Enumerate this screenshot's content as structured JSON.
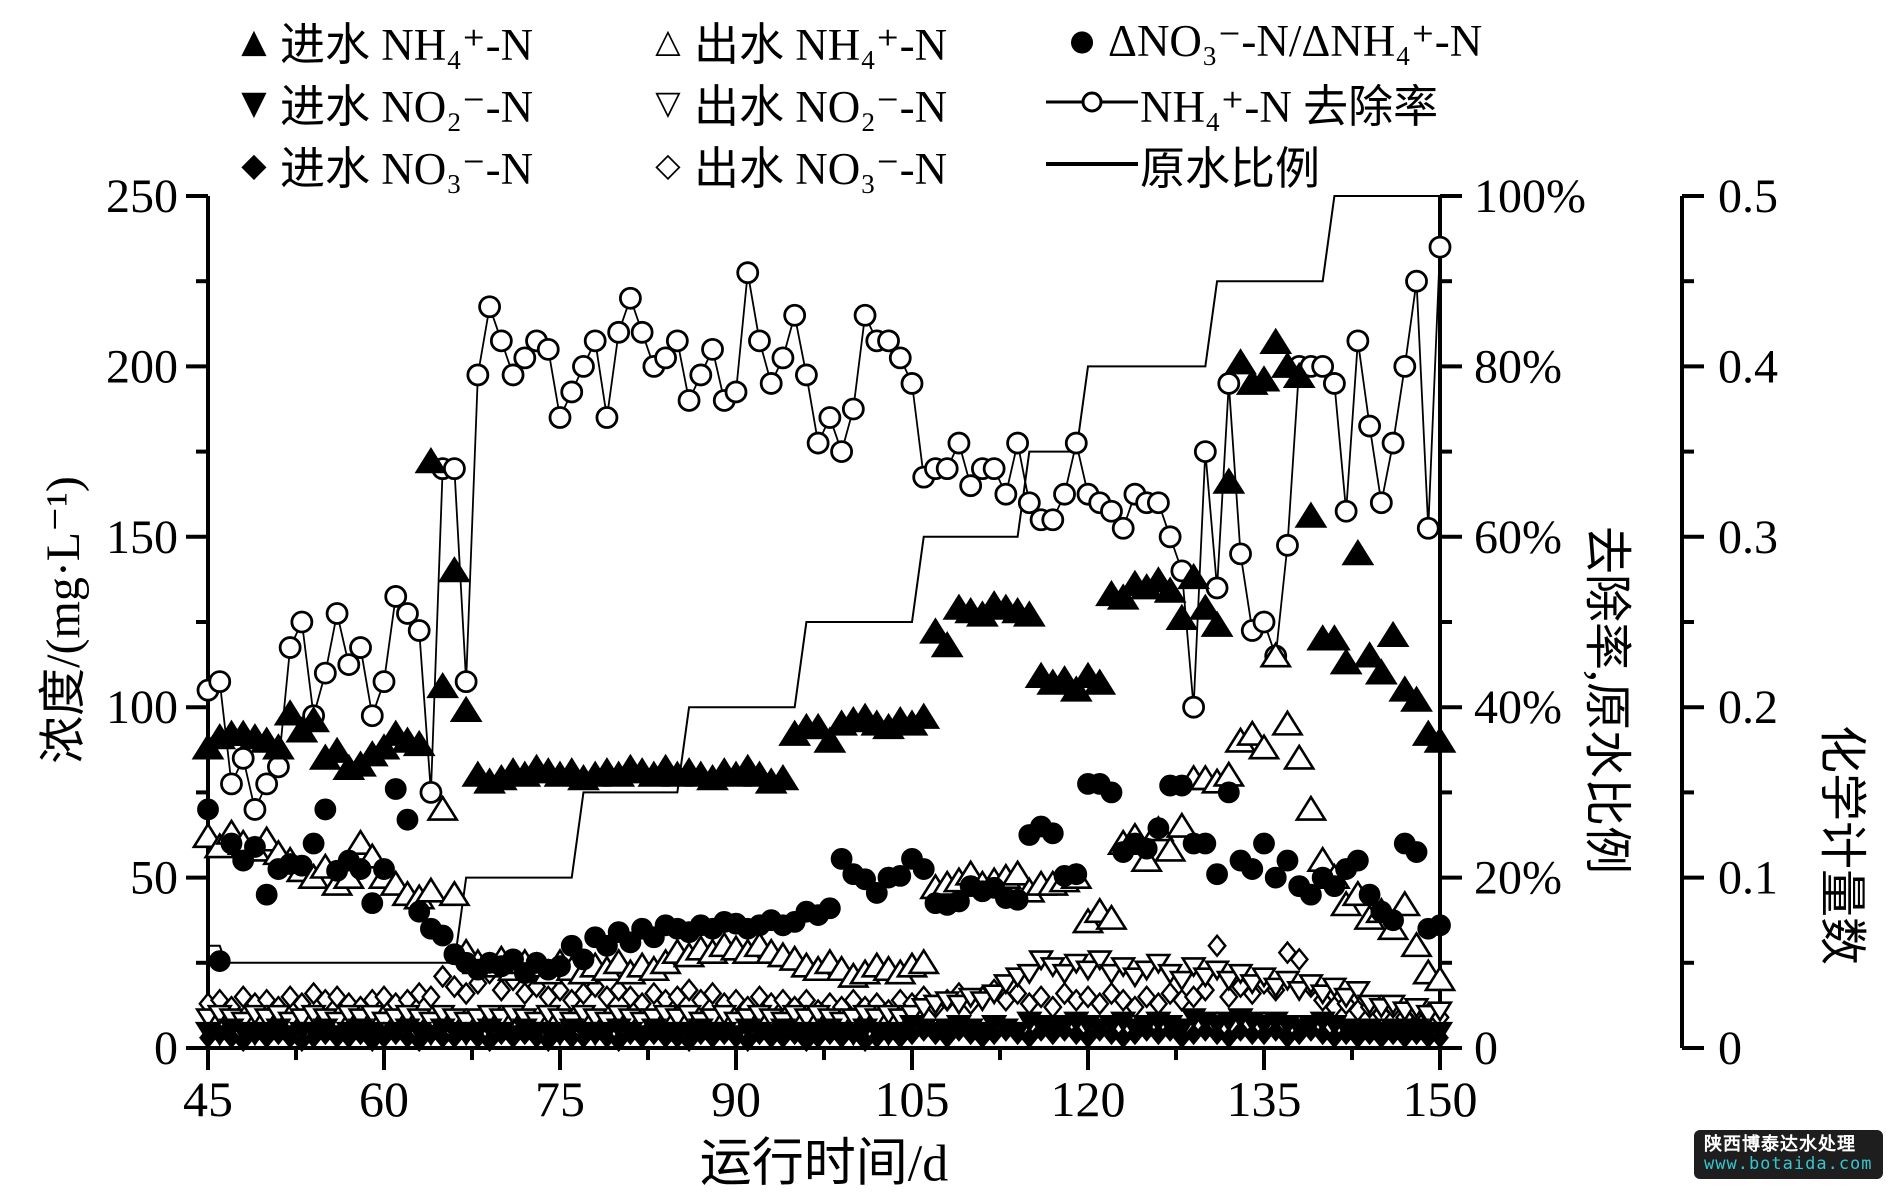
{
  "figure": {
    "x_title": "运行时间/d",
    "conc_title": "浓度/(mg·L⁻¹)",
    "percent_title": "去除率,原水比例",
    "stoich_title": "化学计量数"
  },
  "legend": {
    "items": [
      {
        "id": "inflow_nh4",
        "glyph": "▲",
        "label": "进水 NH₄⁺-N"
      },
      {
        "id": "outflow_nh4",
        "glyph": "△",
        "label": "出水 NH₄⁺-N"
      },
      {
        "id": "stoich",
        "glyph": "●",
        "label": "ΔNO₃⁻-N/ΔNH₄⁺-N"
      },
      {
        "id": "inflow_no2",
        "glyph": "▼",
        "label": "进水 NO₂⁻-N"
      },
      {
        "id": "outflow_no2",
        "glyph": "▽",
        "label": "出水 NO₂⁻-N"
      },
      {
        "id": "removal",
        "glyph": "",
        "label": "NH₄⁺-N 去除率"
      },
      {
        "id": "inflow_no3",
        "glyph": "◆",
        "label": "进水 NO₃⁻-N"
      },
      {
        "id": "outflow_no3",
        "glyph": "◇",
        "label": "出水 NO₃⁻-N"
      },
      {
        "id": "ratio",
        "glyph": "",
        "label": "原水比例"
      }
    ]
  },
  "watermark": {
    "line1": "陕西博泰达水处理",
    "line2": "www.botaida.com",
    "url_color": "#36c6d0",
    "bg_color": "#1e1e1e"
  },
  "chart_data": {
    "type": "scatter",
    "title": "",
    "xlabel": "运行时间/d",
    "x_range": [
      45,
      150
    ],
    "x_major_ticks": [
      45,
      60,
      75,
      90,
      105,
      120,
      135,
      150
    ],
    "x_minor_step": 7.5,
    "grid": false,
    "legend_position": "top",
    "axes": {
      "conc": {
        "label": "浓度/(mg·L⁻¹)",
        "range": [
          0,
          250
        ],
        "major_ticks": [
          0,
          50,
          100,
          150,
          200,
          250
        ],
        "minor_step": 25,
        "tick_labels": [
          "0",
          "50",
          "100",
          "150",
          "200",
          "250"
        ]
      },
      "percent": {
        "label": "去除率,原水比例",
        "range": [
          0,
          100
        ],
        "major_ticks": [
          0,
          20,
          40,
          60,
          80,
          100
        ],
        "minor_step": 10,
        "tick_labels": [
          "0",
          "20%",
          "40%",
          "60%",
          "80%",
          "100%"
        ]
      },
      "stoich": {
        "label": "化学计量数",
        "range": [
          0,
          0.5
        ],
        "major_ticks": [
          0,
          0.1,
          0.2,
          0.3,
          0.4,
          0.5
        ],
        "minor_step": 0.05,
        "tick_labels": [
          "0",
          "0.1",
          "0.2",
          "0.3",
          "0.4",
          "0.5"
        ]
      }
    },
    "days_start": 45,
    "series": [
      {
        "id": "inflow_nh4",
        "label": "进水 NH₄⁺-N",
        "axis": "conc",
        "marker": "triangle-up-filled",
        "size": 13,
        "values": [
          88,
          91,
          92,
          92,
          91,
          90,
          88,
          98,
          93,
          96,
          85,
          87,
          82,
          83,
          86,
          88,
          92,
          90,
          89,
          172,
          106,
          140,
          99,
          80,
          78,
          79,
          81,
          80,
          82,
          81,
          80,
          81,
          79,
          80,
          81,
          80,
          82,
          81,
          80,
          82,
          80,
          81,
          80,
          79,
          81,
          80,
          82,
          80,
          78,
          79,
          92,
          94,
          94,
          90,
          95,
          96,
          97,
          95,
          94,
          96,
          95,
          97,
          122,
          118,
          129,
          128,
          127,
          130,
          129,
          128,
          127,
          109,
          107,
          108,
          105,
          109,
          107,
          133,
          132,
          136,
          135,
          137,
          134,
          126,
          138,
          129,
          124,
          166,
          201,
          195,
          196,
          207,
          200,
          197,
          156,
          120,
          120,
          113,
          145,
          115,
          110,
          121,
          105,
          102,
          92,
          90
        ]
      },
      {
        "id": "outflow_nh4",
        "label": "出水 NH₄⁺-N",
        "axis": "conc",
        "marker": "triangle-up-open",
        "size": 13,
        "values": [
          62,
          59,
          63,
          60,
          58,
          61,
          57,
          55,
          52,
          50,
          53,
          48,
          50,
          60,
          56,
          50,
          48,
          45,
          44,
          46,
          70,
          45,
          28,
          25,
          24,
          26,
          23,
          25,
          24,
          22,
          25,
          23,
          22,
          24,
          23,
          25,
          22,
          24,
          23,
          25,
          28,
          27,
          29,
          28,
          30,
          29,
          28,
          30,
          28,
          27,
          26,
          24,
          23,
          25,
          23,
          21,
          22,
          24,
          23,
          22,
          24,
          25,
          47,
          48,
          49,
          51,
          48,
          49,
          50,
          51,
          46,
          48,
          48,
          49,
          50,
          37,
          40,
          38,
          60,
          62,
          55,
          64,
          58,
          65,
          79,
          79,
          78,
          80,
          90,
          92,
          88,
          115,
          95,
          85,
          70,
          55,
          50,
          42,
          45,
          38,
          40,
          35,
          42,
          30,
          22,
          20
        ]
      },
      {
        "id": "inflow_no2",
        "label": "进水 NO₂⁻-N",
        "axis": "conc",
        "marker": "triangle-down-filled",
        "size": 10,
        "values": [
          5,
          4,
          6,
          5,
          4,
          5,
          6,
          4,
          5,
          5,
          6,
          4,
          5,
          6,
          5,
          4,
          5,
          6,
          5,
          4,
          6,
          5,
          4,
          5,
          6,
          5,
          4,
          6,
          5,
          5,
          4,
          6,
          5,
          4,
          5,
          6,
          5,
          4,
          6,
          5,
          4,
          5,
          6,
          5,
          5,
          4,
          6,
          5,
          4,
          6,
          5,
          4,
          5,
          6,
          5,
          4,
          6,
          5,
          4,
          5,
          7,
          6,
          5,
          6,
          7,
          6,
          5,
          7,
          6,
          5,
          8,
          7,
          6,
          7,
          8,
          7,
          6,
          7,
          8,
          6,
          7,
          8,
          7,
          6,
          9,
          8,
          7,
          8,
          9,
          8,
          7,
          8,
          7,
          6,
          7,
          8,
          7,
          6,
          5,
          6,
          5,
          6,
          5,
          6,
          5,
          5
        ]
      },
      {
        "id": "outflow_no2",
        "label": "出水 NO₂⁻-N",
        "axis": "conc",
        "marker": "triangle-down-open",
        "size": 10,
        "values": [
          9,
          10,
          9,
          8,
          10,
          9,
          10,
          8,
          9,
          10,
          9,
          8,
          10,
          9,
          10,
          8,
          9,
          10,
          9,
          8,
          10,
          9,
          8,
          9,
          10,
          9,
          10,
          9,
          8,
          10,
          9,
          8,
          10,
          9,
          8,
          10,
          9,
          8,
          9,
          10,
          9,
          10,
          8,
          9,
          10,
          8,
          9,
          10,
          9,
          8,
          10,
          9,
          10,
          9,
          8,
          9,
          10,
          9,
          10,
          9,
          10,
          12,
          13,
          14,
          13,
          15,
          14,
          16,
          19,
          21,
          22,
          26,
          24,
          22,
          25,
          23,
          26,
          22,
          24,
          21,
          23,
          25,
          22,
          20,
          24,
          21,
          23,
          20,
          22,
          19,
          21,
          18,
          20,
          17,
          19,
          16,
          18,
          15,
          17,
          13,
          12,
          13,
          11,
          12,
          10,
          11
        ]
      },
      {
        "id": "inflow_no3",
        "label": "进水 NO₃⁻-N",
        "axis": "conc",
        "marker": "diamond-filled",
        "size": 9,
        "values": [
          3,
          4,
          3,
          2,
          4,
          3,
          4,
          3,
          2,
          3,
          4,
          3,
          3,
          4,
          2,
          3,
          4,
          3,
          2,
          4,
          3,
          3,
          4,
          3,
          2,
          4,
          3,
          4,
          3,
          2,
          4,
          3,
          3,
          4,
          3,
          2,
          4,
          3,
          4,
          3,
          3,
          2,
          4,
          3,
          4,
          3,
          2,
          4,
          3,
          3,
          4,
          2,
          3,
          4,
          3,
          4,
          2,
          3,
          4,
          3,
          4,
          5,
          4,
          3,
          5,
          4,
          3,
          4,
          5,
          4,
          3,
          5,
          4,
          5,
          4,
          3,
          5,
          4,
          3,
          4,
          5,
          4,
          5,
          3,
          4,
          5,
          4,
          3,
          5,
          4,
          4,
          5,
          3,
          4,
          5,
          4,
          3,
          4,
          3,
          4,
          3,
          4,
          3,
          4,
          3,
          3
        ]
      },
      {
        "id": "outflow_no3",
        "label": "出水 NO₃⁻-N",
        "axis": "conc",
        "marker": "diamond-open",
        "size": 10,
        "values": [
          13,
          14,
          12,
          15,
          13,
          14,
          12,
          15,
          13,
          16,
          14,
          15,
          13,
          12,
          14,
          15,
          13,
          14,
          16,
          15,
          21,
          18,
          16,
          19,
          22,
          17,
          20,
          16,
          18,
          15,
          17,
          14,
          16,
          18,
          15,
          17,
          15,
          13,
          16,
          14,
          15,
          17,
          14,
          16,
          13,
          14,
          12,
          15,
          13,
          14,
          12,
          14,
          11,
          13,
          12,
          14,
          12,
          13,
          11,
          14,
          13,
          15,
          12,
          14,
          16,
          13,
          15,
          17,
          14,
          16,
          13,
          15,
          12,
          16,
          14,
          15,
          13,
          16,
          14,
          12,
          15,
          13,
          16,
          14,
          15,
          17,
          30,
          15,
          18,
          16,
          19,
          17,
          28,
          26,
          18,
          14,
          12,
          13,
          11,
          12,
          10,
          12,
          9,
          11,
          10,
          9
        ]
      },
      {
        "id": "stoich",
        "label": "ΔNO₃⁻-N/ΔNH₄⁺-N",
        "axis": "stoich",
        "marker": "circle-filled",
        "size": 9.5,
        "values": [
          0.14,
          0.051,
          0.12,
          0.11,
          0.118,
          0.09,
          0.105,
          0.108,
          0.107,
          0.12,
          0.14,
          0.104,
          0.11,
          0.105,
          0.085,
          0.105,
          0.152,
          0.134,
          0.08,
          0.07,
          0.066,
          0.055,
          0.05,
          0.046,
          0.05,
          0.048,
          0.052,
          0.044,
          0.05,
          0.046,
          0.048,
          0.06,
          0.052,
          0.065,
          0.06,
          0.068,
          0.062,
          0.07,
          0.065,
          0.072,
          0.07,
          0.068,
          0.072,
          0.07,
          0.074,
          0.073,
          0.07,
          0.072,
          0.075,
          0.072,
          0.074,
          0.08,
          0.078,
          0.082,
          0.111,
          0.102,
          0.099,
          0.091,
          0.1,
          0.101,
          0.111,
          0.105,
          0.085,
          0.084,
          0.086,
          0.095,
          0.092,
          0.094,
          0.088,
          0.087,
          0.125,
          0.13,
          0.126,
          0.101,
          0.102,
          0.155,
          0.155,
          0.15,
          0.115,
          0.12,
          0.117,
          0.129,
          0.154,
          0.154,
          0.12,
          0.12,
          0.102,
          0.15,
          0.11,
          0.105,
          0.12,
          0.1,
          0.11,
          0.095,
          0.09,
          0.1,
          0.095,
          0.105,
          0.11,
          0.09,
          0.08,
          0.075,
          0.12,
          0.115,
          0.07,
          0.072
        ]
      },
      {
        "id": "removal",
        "label": "NH₄⁺-N 去除率",
        "axis": "percent",
        "marker": "circle-open",
        "size": 10,
        "line": true,
        "values": [
          42,
          43,
          31,
          34,
          28,
          31,
          33,
          47,
          50,
          39,
          44,
          51,
          45,
          47,
          39,
          43,
          53,
          51,
          49,
          30,
          68,
          68,
          43,
          79,
          87,
          83,
          79,
          81,
          83,
          82,
          74,
          77,
          80,
          83,
          74,
          84,
          88,
          84,
          80,
          81,
          83,
          76,
          79,
          82,
          76,
          77,
          91,
          83,
          78,
          81,
          86,
          79,
          71,
          74,
          70,
          75,
          86,
          83,
          83,
          81,
          78,
          67,
          68,
          68,
          71,
          66,
          68,
          68,
          65,
          71,
          64,
          62,
          62,
          65,
          71,
          65,
          64,
          63,
          61,
          65,
          64,
          64,
          60,
          56,
          40,
          70,
          54,
          78,
          58,
          49,
          50,
          46,
          59,
          80,
          80,
          80,
          78,
          63,
          83,
          73,
          64,
          71,
          80,
          90,
          61,
          94
        ]
      }
    ],
    "ratio_line": {
      "id": "ratio",
      "label": "原水比例",
      "axis": "percent",
      "points": [
        [
          45,
          12
        ],
        [
          46,
          12
        ],
        [
          46.5,
          10
        ],
        [
          66,
          10
        ],
        [
          67,
          20
        ],
        [
          76,
          20
        ],
        [
          77,
          30
        ],
        [
          85,
          30
        ],
        [
          86,
          40
        ],
        [
          95,
          40
        ],
        [
          96,
          50
        ],
        [
          105,
          50
        ],
        [
          106,
          60
        ],
        [
          114,
          60
        ],
        [
          115,
          70
        ],
        [
          119,
          70
        ],
        [
          120,
          80
        ],
        [
          130,
          80
        ],
        [
          131,
          90
        ],
        [
          140,
          90
        ],
        [
          141,
          100
        ],
        [
          150,
          100
        ]
      ]
    }
  }
}
